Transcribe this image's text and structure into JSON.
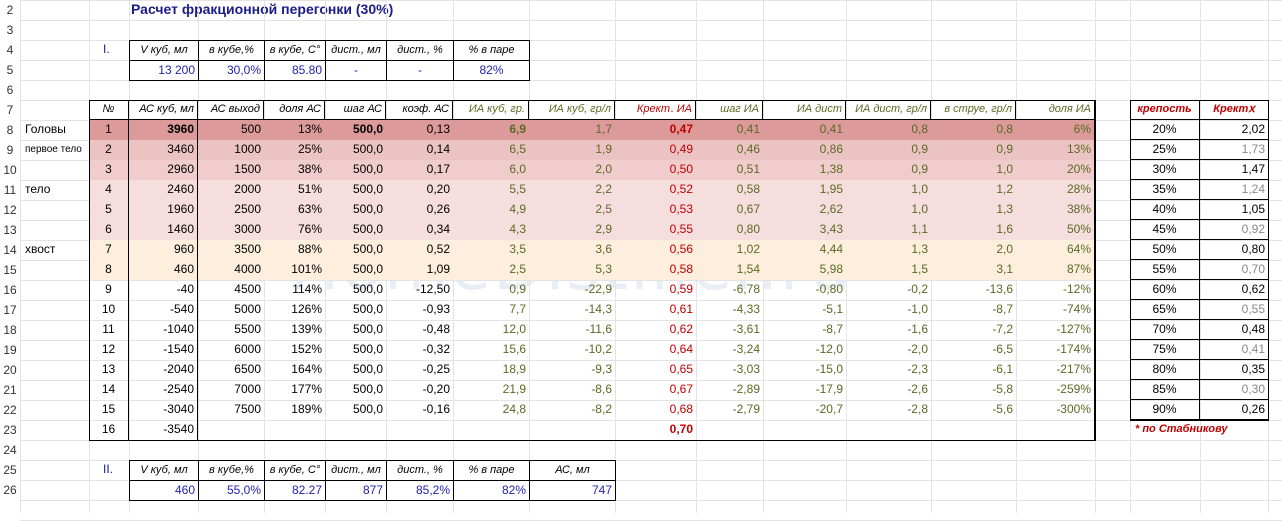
{
  "title": "Расчет фракционной перегонки (30%)",
  "row_numbers": [
    "2",
    "3",
    "4",
    "5",
    "6",
    "7",
    "8",
    "9",
    "10",
    "11",
    "12",
    "13",
    "14",
    "15",
    "16",
    "17",
    "18",
    "19",
    "20",
    "21",
    "22",
    "23",
    "24",
    "25",
    "26"
  ],
  "section1": {
    "label": "I.",
    "headers": [
      "V куб, мл",
      "в кубе,%",
      "в кубе, C°",
      "дист., мл",
      "дист., %",
      "% в паре"
    ],
    "values": [
      "13 200",
      "30,0%",
      "85.80",
      "-",
      "-",
      "82%"
    ]
  },
  "section2": {
    "label": "II.",
    "headers": [
      "V куб, мл",
      "в кубе,%",
      "в кубе, C°",
      "дист., мл",
      "дист., %",
      "% в паре",
      "АС, мл"
    ],
    "values": [
      "460",
      "55,0%",
      "82.27",
      "877",
      "85,2%",
      "82%",
      "747"
    ]
  },
  "side_labels": [
    "Головы",
    "первое тело",
    "тело",
    "хвост"
  ],
  "main_table": {
    "headers": [
      "№",
      "АС куб, мл",
      "АС выход",
      "доля АС",
      "шаг АС",
      "коэф. АС",
      "ИА куб, гр.",
      "ИА куб, гр/л",
      "Крект․ ИА",
      "шаг ИА",
      "ИА дист",
      "ИА дист, гр/л",
      "в струе, гр/л",
      "доля ИА"
    ],
    "rows": [
      [
        "1",
        "3960",
        "500",
        "13%",
        "500,0",
        "0,13",
        "6,9",
        "1,7",
        "0,47",
        "0,41",
        "0,41",
        "0,8",
        "0,8",
        "6%"
      ],
      [
        "2",
        "3460",
        "1000",
        "25%",
        "500,0",
        "0,14",
        "6,5",
        "1,9",
        "0,49",
        "0,46",
        "0,86",
        "0,9",
        "0,9",
        "13%"
      ],
      [
        "3",
        "2960",
        "1500",
        "38%",
        "500,0",
        "0,17",
        "6,0",
        "2,0",
        "0,50",
        "0,51",
        "1,38",
        "0,9",
        "1,0",
        "20%"
      ],
      [
        "4",
        "2460",
        "2000",
        "51%",
        "500,0",
        "0,20",
        "5,5",
        "2,2",
        "0,52",
        "0,58",
        "1,95",
        "1,0",
        "1,2",
        "28%"
      ],
      [
        "5",
        "1960",
        "2500",
        "63%",
        "500,0",
        "0,26",
        "4,9",
        "2,5",
        "0,53",
        "0,67",
        "2,62",
        "1,0",
        "1,3",
        "38%"
      ],
      [
        "6",
        "1460",
        "3000",
        "76%",
        "500,0",
        "0,34",
        "4,3",
        "2,9",
        "0,55",
        "0,80",
        "3,43",
        "1,1",
        "1,6",
        "50%"
      ],
      [
        "7",
        "960",
        "3500",
        "88%",
        "500,0",
        "0,52",
        "3,5",
        "3,6",
        "0,56",
        "1,02",
        "4,44",
        "1,3",
        "2,0",
        "64%"
      ],
      [
        "8",
        "460",
        "4000",
        "101%",
        "500,0",
        "1,09",
        "2,5",
        "5,3",
        "0,58",
        "1,54",
        "5,98",
        "1,5",
        "3,1",
        "87%"
      ],
      [
        "9",
        "-40",
        "4500",
        "114%",
        "500,0",
        "-12,50",
        "0,9",
        "-22,9",
        "0,59",
        "-6,78",
        "-0,80",
        "-0,2",
        "-13,6",
        "-12%"
      ],
      [
        "10",
        "-540",
        "5000",
        "126%",
        "500,0",
        "-0,93",
        "7,7",
        "-14,3",
        "0,61",
        "-4,33",
        "-5,1",
        "-1,0",
        "-8,7",
        "-74%"
      ],
      [
        "11",
        "-1040",
        "5500",
        "139%",
        "500,0",
        "-0,48",
        "12,0",
        "-11,6",
        "0,62",
        "-3,61",
        "-8,7",
        "-1,6",
        "-7,2",
        "-127%"
      ],
      [
        "12",
        "-1540",
        "6000",
        "152%",
        "500,0",
        "-0,32",
        "15,6",
        "-10,2",
        "0,64",
        "-3,24",
        "-12,0",
        "-2,0",
        "-6,5",
        "-174%"
      ],
      [
        "13",
        "-2040",
        "6500",
        "164%",
        "500,0",
        "-0,25",
        "18,9",
        "-9,3",
        "0,65",
        "-3,03",
        "-15,0",
        "-2,3",
        "-6,1",
        "-217%"
      ],
      [
        "14",
        "-2540",
        "7000",
        "177%",
        "500,0",
        "-0,20",
        "21,9",
        "-8,6",
        "0,67",
        "-2,89",
        "-17,9",
        "-2,6",
        "-5,8",
        "-259%"
      ],
      [
        "15",
        "-3040",
        "7500",
        "189%",
        "500,0",
        "-0,16",
        "24,8",
        "-8,2",
        "0,68",
        "-2,79",
        "-20,7",
        "-2,8",
        "-5,6",
        "-300%"
      ],
      [
        "16",
        "-3540",
        "",
        "",
        "",
        "",
        "",
        "",
        "0,70",
        "",
        "",
        "",
        "",
        ""
      ]
    ]
  },
  "side_table": {
    "headers": [
      "крепость",
      "Кректⅹ"
    ],
    "rows": [
      [
        "20%",
        "2,02"
      ],
      [
        "25%",
        "1,73"
      ],
      [
        "30%",
        "1,47"
      ],
      [
        "35%",
        "1,24"
      ],
      [
        "40%",
        "1,05"
      ],
      [
        "45%",
        "0,92"
      ],
      [
        "50%",
        "0,80"
      ],
      [
        "55%",
        "0,70"
      ],
      [
        "60%",
        "0,62"
      ],
      [
        "65%",
        "0,55"
      ],
      [
        "70%",
        "0,48"
      ],
      [
        "75%",
        "0,41"
      ],
      [
        "80%",
        "0,35"
      ],
      [
        "85%",
        "0,30"
      ],
      [
        "90%",
        "0,26"
      ]
    ],
    "note": "* по Стабникову"
  },
  "watermark": "HomeDistiller.ru",
  "colors": {
    "band_heads": "#dd9a9a",
    "band_first": "#ecc3c3",
    "band_first_light": "#f0cccc",
    "band_body": "#f6dede",
    "band_tail": "#fdeedd",
    "text_blue": "#1f1fb0",
    "text_green": "#5a6a23",
    "text_red": "#c00000"
  }
}
